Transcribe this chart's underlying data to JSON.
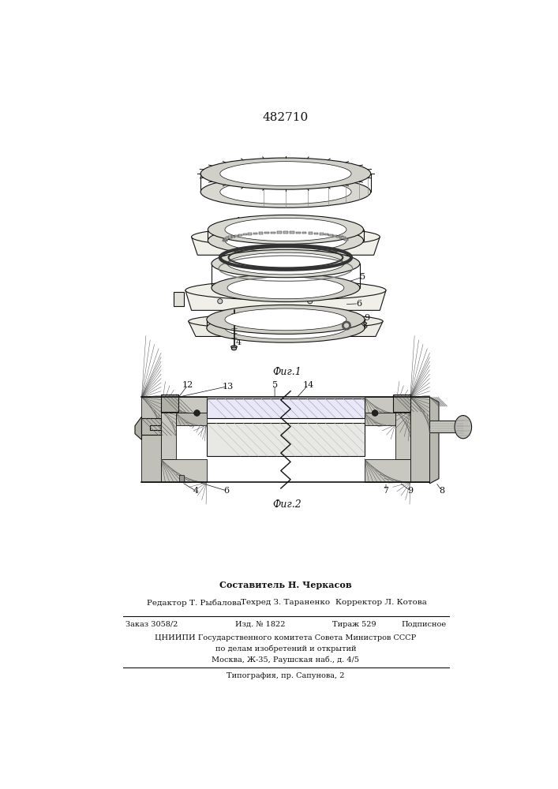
{
  "title": "482710",
  "fig1_label": "Фиг.1",
  "fig2_label": "Фиг.2",
  "line_color": "#111111",
  "footer": {
    "composer": "Составитель Н. Черкасов",
    "editor": "Редактор Т. Рыбалова",
    "techred": "Техред З. Тараненко",
    "corrector": "Корректор Л. Котова",
    "order": "Заказ 3058/2",
    "izd": "Изд. № 1822",
    "tirazh": "Тираж 529",
    "podpisnoe": "Подписное",
    "tsniipи": "ЦНИИПИ Государственного комитета Совета Министров СССР",
    "line2": "по делам изобретений и открытий",
    "line3": "Москва, Ж-35, Раушская наб., д. 4/5",
    "tipografia": "Типография, пр. Сапунова, 2"
  }
}
